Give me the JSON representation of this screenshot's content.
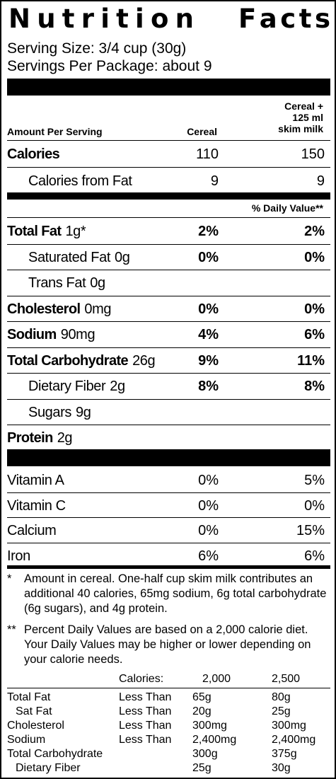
{
  "title": {
    "word1": "Nutrition",
    "word2": "Facts"
  },
  "serving": {
    "size": "Serving Size: 3/4 cup (30g)",
    "per_package": "Servings Per Package: about 9"
  },
  "header": {
    "amount_per_serving": "Amount Per Serving",
    "col1": "Cereal",
    "col2_line1": "Cereal +",
    "col2_line2": "125 ml",
    "col2_line3": "skim milk"
  },
  "calories": {
    "label": "Calories",
    "cereal": "110",
    "with_milk": "150"
  },
  "calories_from_fat": {
    "label": "Calories from Fat",
    "cereal": "9",
    "with_milk": "9"
  },
  "daily_value_header": "% Daily Value**",
  "nutrients": [
    {
      "name": "Total Fat",
      "amount": "1g*",
      "cereal": "2%",
      "with_milk": "2%"
    },
    {
      "name": "Saturated Fat",
      "amount": "0g",
      "cereal": "0%",
      "with_milk": "0%"
    },
    {
      "name": "Trans Fat",
      "amount": "0g",
      "cereal": "",
      "with_milk": ""
    },
    {
      "name": "Cholesterol",
      "amount": "0mg",
      "cereal": "0%",
      "with_milk": "0%"
    },
    {
      "name": "Sodium",
      "amount": "90mg",
      "cereal": "4%",
      "with_milk": "6%"
    },
    {
      "name": "Total Carbohydrate",
      "amount": "26g",
      "cereal": "9%",
      "with_milk": "11%"
    },
    {
      "name": "Dietary Fiber",
      "amount": "2g",
      "cereal": "8%",
      "with_milk": "8%"
    },
    {
      "name": "Sugars",
      "amount": "9g",
      "cereal": "",
      "with_milk": ""
    },
    {
      "name": "Protein",
      "amount": "2g",
      "cereal": "",
      "with_milk": ""
    }
  ],
  "vitamins": [
    {
      "name": "Vitamin A",
      "cereal": "0%",
      "with_milk": "5%"
    },
    {
      "name": "Vitamin C",
      "cereal": "0%",
      "with_milk": "0%"
    },
    {
      "name": "Calcium",
      "cereal": "0%",
      "with_milk": "15%"
    },
    {
      "name": "Iron",
      "cereal": "6%",
      "with_milk": "6%"
    }
  ],
  "footnotes": {
    "note1_mark": "*",
    "note1": "Amount in cereal. One-half cup skim milk contributes an additional 40 calories, 65mg sodium, 6g total carbohydrate (6g sugars), and 4g protein.",
    "note2_mark": "**",
    "note2": "Percent Daily Values are based on a 2,000 calorie diet. Your Daily Values may be higher or lower depending on your calorie needs."
  },
  "daily_values_table": {
    "calories_label": "Calories:",
    "cal_2000": "2,000",
    "cal_2500": "2,500",
    "rows": [
      {
        "name": "Total Fat",
        "qualifier": "Less Than",
        "v2000": "65g",
        "v2500": "80g"
      },
      {
        "name": "Sat Fat",
        "qualifier": "Less Than",
        "v2000": "20g",
        "v2500": "25g"
      },
      {
        "name": "Cholesterol",
        "qualifier": "Less Than",
        "v2000": "300mg",
        "v2500": "300mg"
      },
      {
        "name": "Sodium",
        "qualifier": "Less Than",
        "v2000": "2,400mg",
        "v2500": "2,400mg"
      },
      {
        "name": "Total Carbohydrate",
        "qualifier": "",
        "v2000": "300g",
        "v2500": "375g"
      },
      {
        "name": "Dietary Fiber",
        "qualifier": "",
        "v2000": "25g",
        "v2500": "30g"
      }
    ]
  }
}
